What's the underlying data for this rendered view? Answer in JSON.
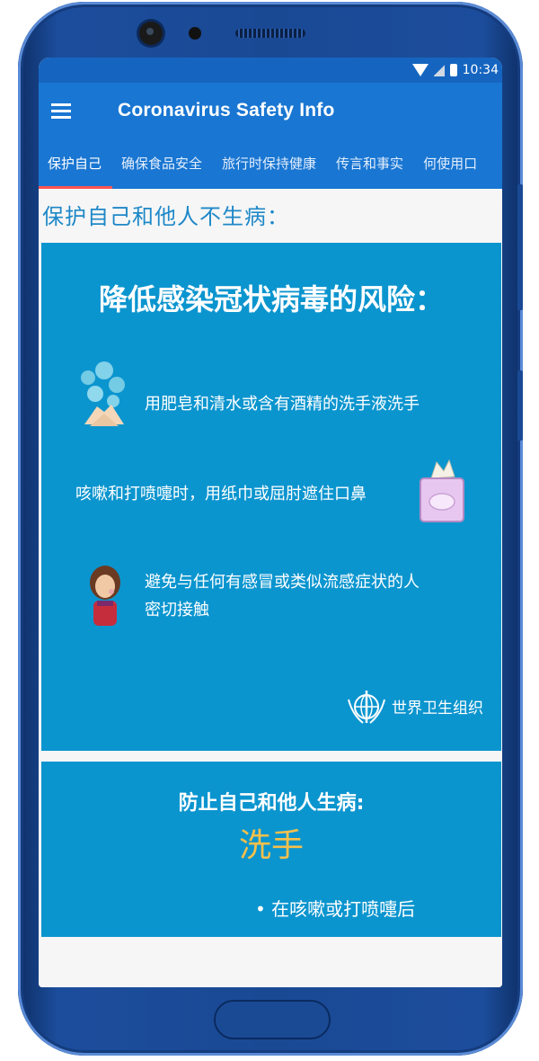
{
  "status_bar": {
    "time": "10:34"
  },
  "app_bar": {
    "title": "Coronavirus Safety Info"
  },
  "tabs": [
    {
      "label": "保护自己"
    },
    {
      "label": "确保食品安全"
    },
    {
      "label": "旅行时保持健康"
    },
    {
      "label": "传言和事实"
    },
    {
      "label": "何使用口"
    }
  ],
  "section": {
    "heading": "保护自己和他人不生病："
  },
  "card1": {
    "title": "降低感染冠状病毒的风险：",
    "items": [
      {
        "text": "用肥皂和清水或含有酒精的洗手液洗手",
        "icon": "handwashing-icon"
      },
      {
        "text": "咳嗽和打喷嚏时，用纸巾或屈肘遮住口鼻",
        "icon": "tissue-box-icon"
      },
      {
        "text_line1": "避免与任何有感冒或类似流感症状的人",
        "text_line2": "密切接触",
        "icon": "sick-person-icon"
      }
    ],
    "who_label": "世界卫生组织"
  },
  "card2": {
    "title": "防止自己和他人生病:",
    "subtitle": "洗手",
    "bullet": "• 在咳嗽或打喷嚏后"
  },
  "colors": {
    "appbar": "#1976d2",
    "card": "#0b95cf",
    "accent": "#f6c04c",
    "indicator": "#ff5252"
  }
}
